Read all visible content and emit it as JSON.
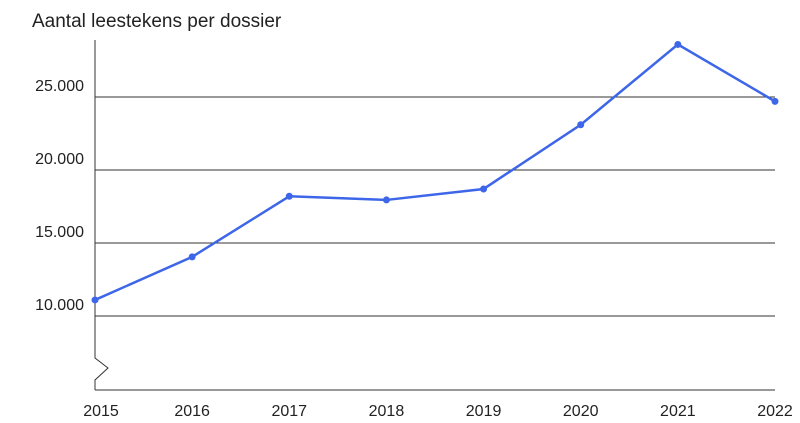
{
  "chart_data": {
    "type": "line",
    "title": "Aantal leestekens per dossier",
    "categories": [
      "2015",
      "2016",
      "2017",
      "2018",
      "2019",
      "2020",
      "2021",
      "2022"
    ],
    "series": [
      {
        "name": "Aantal leestekens",
        "color": "#3d66e8",
        "values": [
          11100,
          14050,
          18200,
          17950,
          18700,
          23100,
          28600,
          24700
        ]
      }
    ],
    "ylim": [
      5000,
      29000
    ],
    "yticks": [
      {
        "value": 10000,
        "label": "10.000"
      },
      {
        "value": 15000,
        "label": "15.000"
      },
      {
        "value": 20000,
        "label": "20.000"
      },
      {
        "value": 25000,
        "label": "25.000"
      }
    ],
    "grid": true
  }
}
